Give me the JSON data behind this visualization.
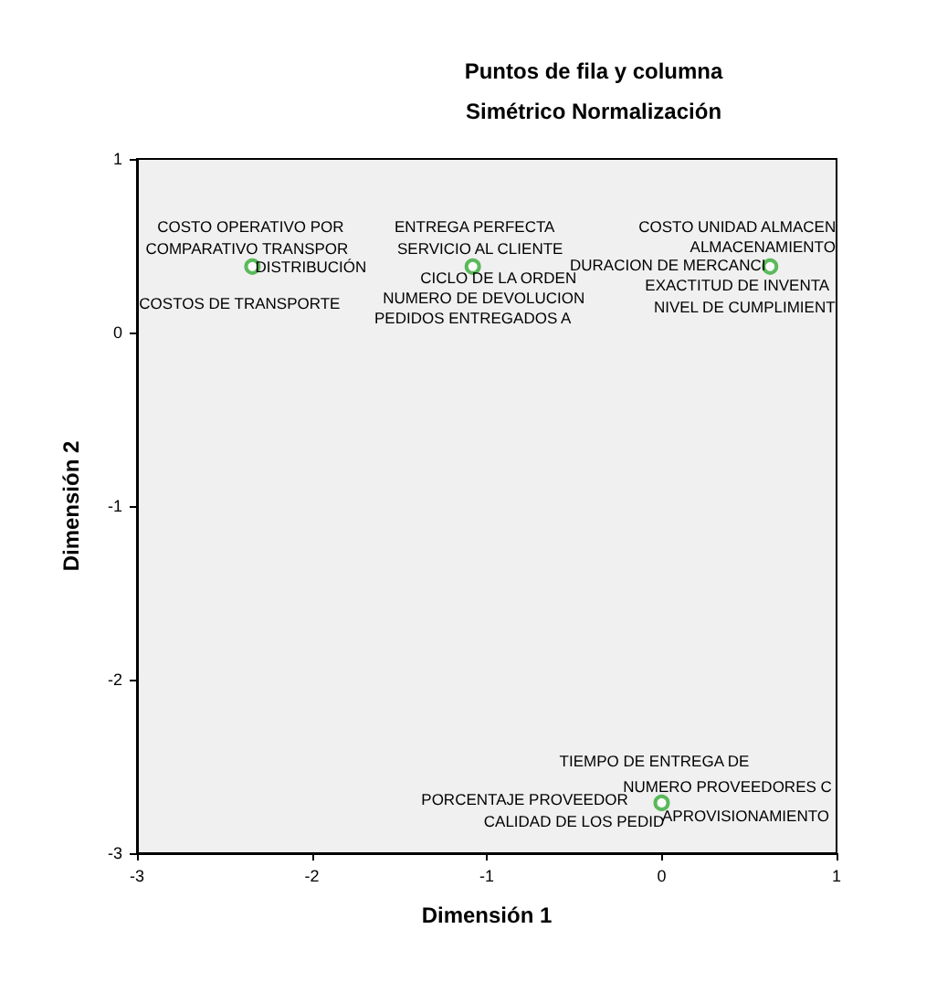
{
  "chart_data": {
    "type": "scatter",
    "title": "Puntos de fila y columna",
    "subtitle": "Simétrico Normalización",
    "xlabel": "Dimensión 1",
    "ylabel": "Dimensión 2",
    "x": [
      -2.34,
      -1.08,
      0.62,
      0.0
    ],
    "values": [
      0.38,
      0.38,
      0.38,
      -2.71
    ],
    "color": "#33aa33",
    "marker": "circle",
    "xlim": [
      -3,
      1
    ],
    "xticks": [
      -3,
      -2,
      -1,
      0,
      1
    ],
    "ylim": [
      -3,
      1
    ],
    "yticks": [
      -3,
      -2,
      -1,
      0,
      1
    ],
    "annotations": [
      {
        "text": "COSTO OPERATIVO POR",
        "x": -2.34,
        "y": 0.38
      },
      {
        "text": "COMPARATIVO TRANSPOR",
        "x": -2.34,
        "y": 0.38
      },
      {
        "text": "DISTRIBUCIÓN",
        "x": -2.34,
        "y": 0.38
      },
      {
        "text": "COSTOS DE TRANSPORTE",
        "x": -2.34,
        "y": 0.38
      },
      {
        "text": "ENTREGA PERFECTA",
        "x": -1.08,
        "y": 0.38
      },
      {
        "text": "SERVICIO AL CLIENTE",
        "x": -1.08,
        "y": 0.38
      },
      {
        "text": "CICLO DE LA ORDEN",
        "x": -1.08,
        "y": 0.38
      },
      {
        "text": "NUMERO DE DEVOLUCION",
        "x": -1.08,
        "y": 0.38
      },
      {
        "text": "PEDIDOS ENTREGADOS A",
        "x": -1.08,
        "y": 0.38
      },
      {
        "text": "COSTO UNIDAD ALMACEN",
        "x": 0.62,
        "y": 0.38
      },
      {
        "text": "ALMACENAMIENTO",
        "x": 0.62,
        "y": 0.38
      },
      {
        "text": "DURACION DE MERCANCI",
        "x": 0.62,
        "y": 0.38
      },
      {
        "text": "EXACTITUD DE INVENTA",
        "x": 0.62,
        "y": 0.38
      },
      {
        "text": "NIVEL DE CUMPLIMIENT",
        "x": 0.62,
        "y": 0.38
      },
      {
        "text": "TIEMPO DE ENTREGA DE",
        "x": 0.0,
        "y": -2.71
      },
      {
        "text": "NUMERO PROVEEDORES C",
        "x": 0.0,
        "y": -2.71
      },
      {
        "text": "PORCENTAJE PROVEEDOR",
        "x": 0.0,
        "y": -2.71
      },
      {
        "text": "CALIDAD DE LOS PEDID",
        "x": 0.0,
        "y": -2.71
      },
      {
        "text": "APROVISIONAMIENTO",
        "x": 0.0,
        "y": -2.71
      }
    ]
  }
}
